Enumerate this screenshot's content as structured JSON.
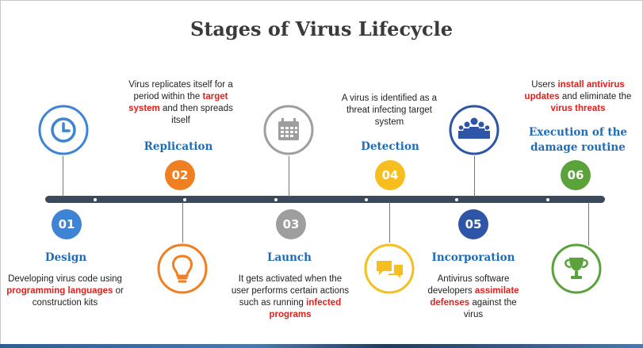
{
  "title": "Stages of Virus Lifecycle",
  "colors": {
    "blue": "#3d84d6",
    "orange": "#f07f22",
    "gray": "#9e9e9e",
    "yellow": "#f6bf1f",
    "navy": "#2f55a7",
    "green": "#5aa33a",
    "title_blue": "#1f6bb5",
    "highlight_red": "#e0201b"
  },
  "stages": [
    {
      "number": "01",
      "title": "Design",
      "icon": "clock-icon",
      "desc": [
        "Developing virus code using ",
        "programming languages",
        " or construction kits"
      ]
    },
    {
      "number": "02",
      "title": "Replication",
      "icon": "lightbulb-icon",
      "desc": [
        "Virus replicates itself for a period within the ",
        "target system",
        " and then spreads itself"
      ]
    },
    {
      "number": "03",
      "title": "Launch",
      "icon": "calendar-icon",
      "desc": [
        "It gets activated when the user performs certain actions such as running ",
        "infected programs",
        ""
      ]
    },
    {
      "number": "04",
      "title": "Detection",
      "icon": "chat-bubbles-icon",
      "desc": [
        "A virus is identified as a threat infecting target system",
        "",
        ""
      ]
    },
    {
      "number": "05",
      "title": "Incorporation",
      "icon": "people-group-icon",
      "desc": [
        "Antivirus software developers ",
        "assimilate defenses",
        " against the virus"
      ]
    },
    {
      "number": "06",
      "title": "Execution of the damage routine",
      "icon": "trophy-icon",
      "desc_parts": [
        "Users ",
        "install antivirus updates",
        " and eliminate the ",
        "virus threats",
        ""
      ]
    }
  ]
}
